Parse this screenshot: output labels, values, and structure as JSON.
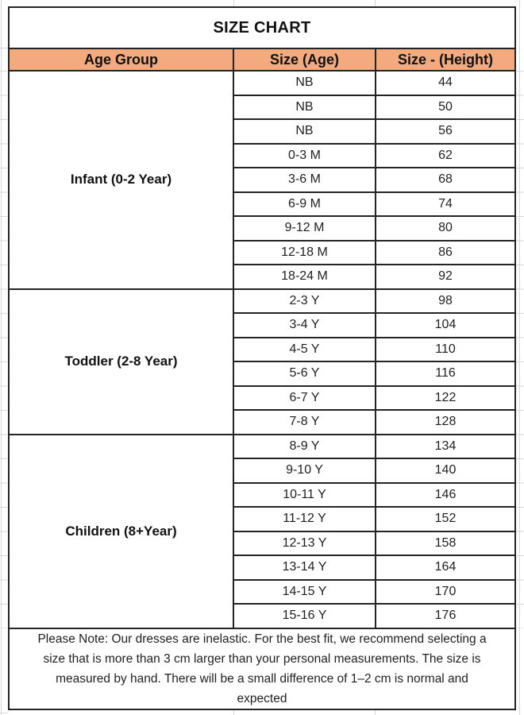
{
  "chart_data": {
    "type": "table",
    "title": "SIZE CHART",
    "columns": [
      "Age Group",
      "Size (Age)",
      "Size - (Height)"
    ],
    "groups": [
      {
        "age_group": "Infant (0-2 Year)",
        "rows": [
          [
            "NB",
            "44"
          ],
          [
            "NB",
            "50"
          ],
          [
            "NB",
            "56"
          ],
          [
            "0-3 M",
            "62"
          ],
          [
            "3-6 M",
            "68"
          ],
          [
            "6-9 M",
            "74"
          ],
          [
            "9-12 M",
            "80"
          ],
          [
            "12-18 M",
            "86"
          ],
          [
            "18-24 M",
            "92"
          ]
        ]
      },
      {
        "age_group": "Toddler (2-8 Year)",
        "rows": [
          [
            "2-3 Y",
            "98"
          ],
          [
            "3-4 Y",
            "104"
          ],
          [
            "4-5 Y",
            "110"
          ],
          [
            "5-6 Y",
            "116"
          ],
          [
            "6-7 Y",
            "122"
          ],
          [
            "7-8 Y",
            "128"
          ]
        ]
      },
      {
        "age_group": "Children (8+Year)",
        "rows": [
          [
            "8-9 Y",
            "134"
          ],
          [
            "9-10 Y",
            "140"
          ],
          [
            "10-11 Y",
            "146"
          ],
          [
            "11-12 Y",
            "152"
          ],
          [
            "12-13 Y",
            "158"
          ],
          [
            "13-14 Y",
            "164"
          ],
          [
            "14-15 Y",
            "170"
          ],
          [
            "15-16 Y",
            "176"
          ]
        ]
      }
    ],
    "annotation": "Please Note: Our dresses are inelastic. For the best fit, we recommend selecting a size that is more than 3 cm larger than your personal measurements. The size is measured by hand. There will be a small difference of 1–2 cm is normal and expected"
  },
  "colors": {
    "header_bg": "#F3AA7E",
    "border": "#242424",
    "text": "#1F1F1F",
    "gridline": "#D6D6D6",
    "page_bg": "#FFFFFF"
  }
}
